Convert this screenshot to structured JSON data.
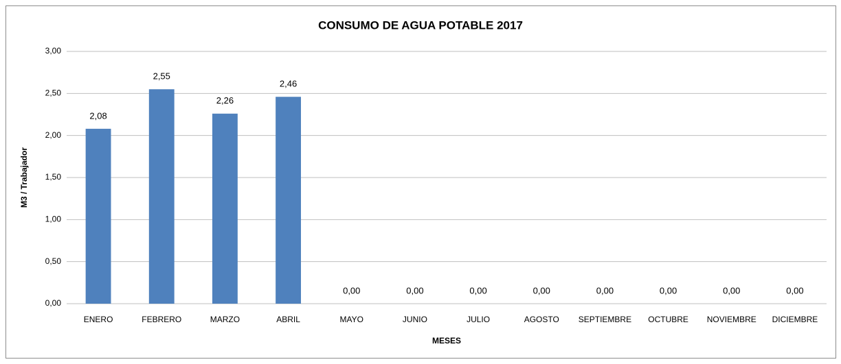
{
  "chart_data": {
    "type": "bar",
    "title": "CONSUMO DE AGUA POTABLE 2017",
    "y_label": "M3 / Trabajador",
    "x_label": "MESES",
    "categories": [
      "ENERO",
      "FEBRERO",
      "MARZO",
      "ABRIL",
      "MAYO",
      "JUNIO",
      "JULIO",
      "AGOSTO",
      "SEPTIEMBRE",
      "OCTUBRE",
      "NOVIEMBRE",
      "DICIEMBRE"
    ],
    "values": [
      2.08,
      2.55,
      2.26,
      2.46,
      0,
      0,
      0,
      0,
      0,
      0,
      0,
      0
    ],
    "value_labels": [
      "2,08",
      "2,55",
      "2,26",
      "2,46",
      "0,00",
      "0,00",
      "0,00",
      "0,00",
      "0,00",
      "0,00",
      "0,00",
      "0,00"
    ],
    "color": "#4f81bd",
    "ylim": [
      0,
      3
    ],
    "yticks": [
      {
        "value": 0,
        "label": "0,00"
      },
      {
        "value": 0.5,
        "label": "0,50"
      },
      {
        "value": 1,
        "label": "1,00"
      },
      {
        "value": 1.5,
        "label": "1,50"
      },
      {
        "value": 2,
        "label": "2,00"
      },
      {
        "value": 2.5,
        "label": "2,50"
      },
      {
        "value": 3,
        "label": "3,00"
      }
    ],
    "grid": true
  }
}
